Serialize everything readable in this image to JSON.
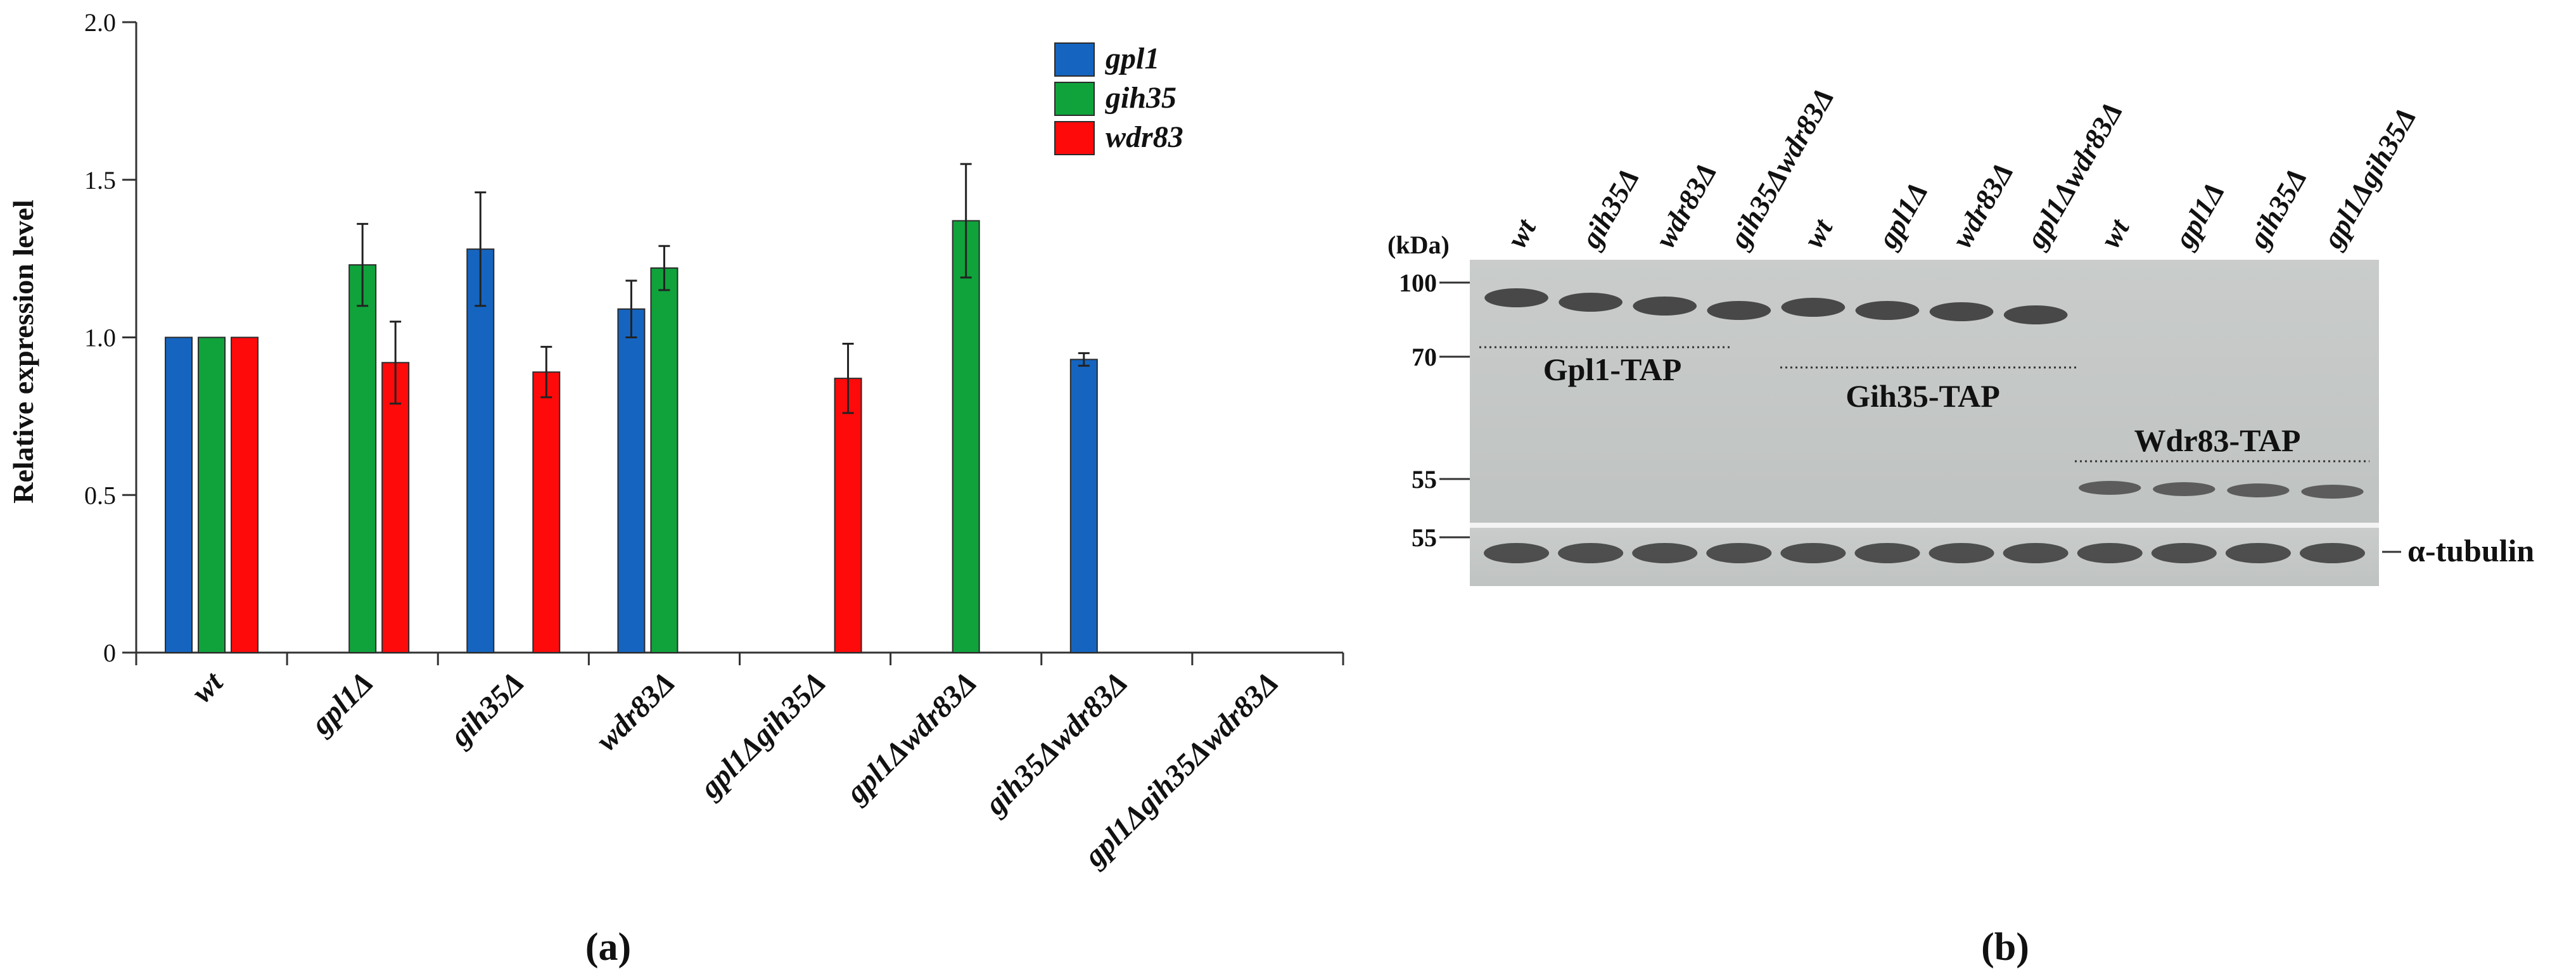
{
  "chart_data": [
    {
      "type": "bar",
      "ylabel": "Relative expression level",
      "ylim": [
        0,
        2.0
      ],
      "yticks": [
        "0",
        "0.5",
        "1.0",
        "1.5",
        "2.0"
      ],
      "categories": [
        "wt",
        "gpl1Δ",
        "gih35Δ",
        "wdr83Δ",
        "gpl1Δgih35Δ",
        "gpl1Δwdr83Δ",
        "gih35Δwdr83Δ",
        "gpl1Δgih35Δwdr83Δ"
      ],
      "series": [
        {
          "name": "gpl1",
          "color": "#1565c0",
          "values": [
            1.0,
            null,
            1.28,
            1.09,
            null,
            null,
            0.93,
            null
          ],
          "errors": [
            0,
            null,
            0.18,
            0.09,
            null,
            null,
            0.02,
            null
          ]
        },
        {
          "name": "gih35",
          "color": "#10a33c",
          "values": [
            1.0,
            1.23,
            null,
            1.22,
            null,
            1.37,
            null,
            null
          ],
          "errors": [
            0,
            0.13,
            null,
            0.07,
            null,
            0.18,
            null,
            null
          ]
        },
        {
          "name": "wdr83",
          "color": "#ff0a0a",
          "values": [
            1.0,
            0.92,
            0.89,
            null,
            0.87,
            null,
            null,
            null
          ],
          "errors": [
            0,
            0.13,
            0.08,
            null,
            0.11,
            null,
            null,
            null
          ]
        }
      ],
      "legend_position": "top-right",
      "panel_label": "(a)"
    },
    {
      "type": "blot",
      "kda_header": "(kDa)",
      "markers": [
        "100",
        "70",
        "55",
        "55"
      ],
      "lanes": [
        "wt",
        "gih35Δ",
        "wdr83Δ",
        "gih35Δwdr83Δ",
        "wt",
        "gpl1Δ",
        "wdr83Δ",
        "gpl1Δwdr83Δ",
        "wt",
        "gpl1Δ",
        "gih35Δ",
        "gpl1Δgih35Δ"
      ],
      "protein_labels": [
        "Gpl1-TAP",
        "Gih35-TAP",
        "Wdr83-TAP"
      ],
      "loading_control": "α-tubulin",
      "panel_label": "(b)"
    }
  ]
}
